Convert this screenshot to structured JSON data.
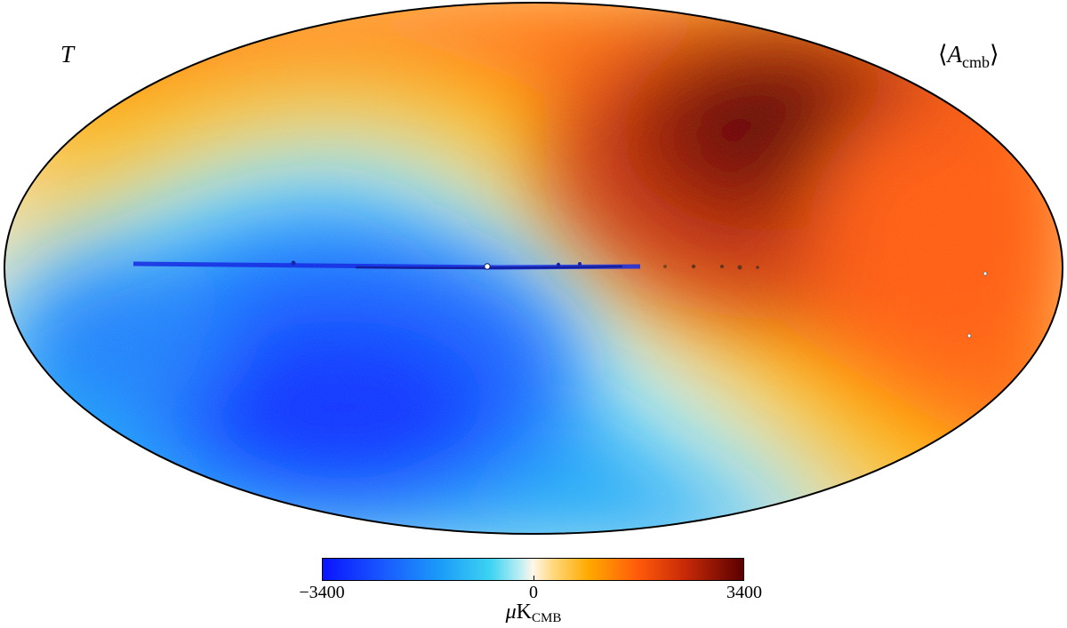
{
  "map": {
    "corner_left": "T",
    "corner_right_symbol": "A",
    "corner_right_subscript": "cmb",
    "bracket_open": "⟨",
    "bracket_close": "⟩",
    "colors": {
      "deep_blue": "#0a14ff",
      "cyan": "#3ed4f2",
      "cream": "#fff6e8",
      "orange": "#ffab00",
      "dark_red": "#5a0000"
    }
  },
  "colorbar": {
    "min_label": "−3400",
    "mid_label": "0",
    "max_label": "3400",
    "unit_symbol": "μ",
    "unit_main": "K",
    "unit_sub": "CMB"
  }
}
